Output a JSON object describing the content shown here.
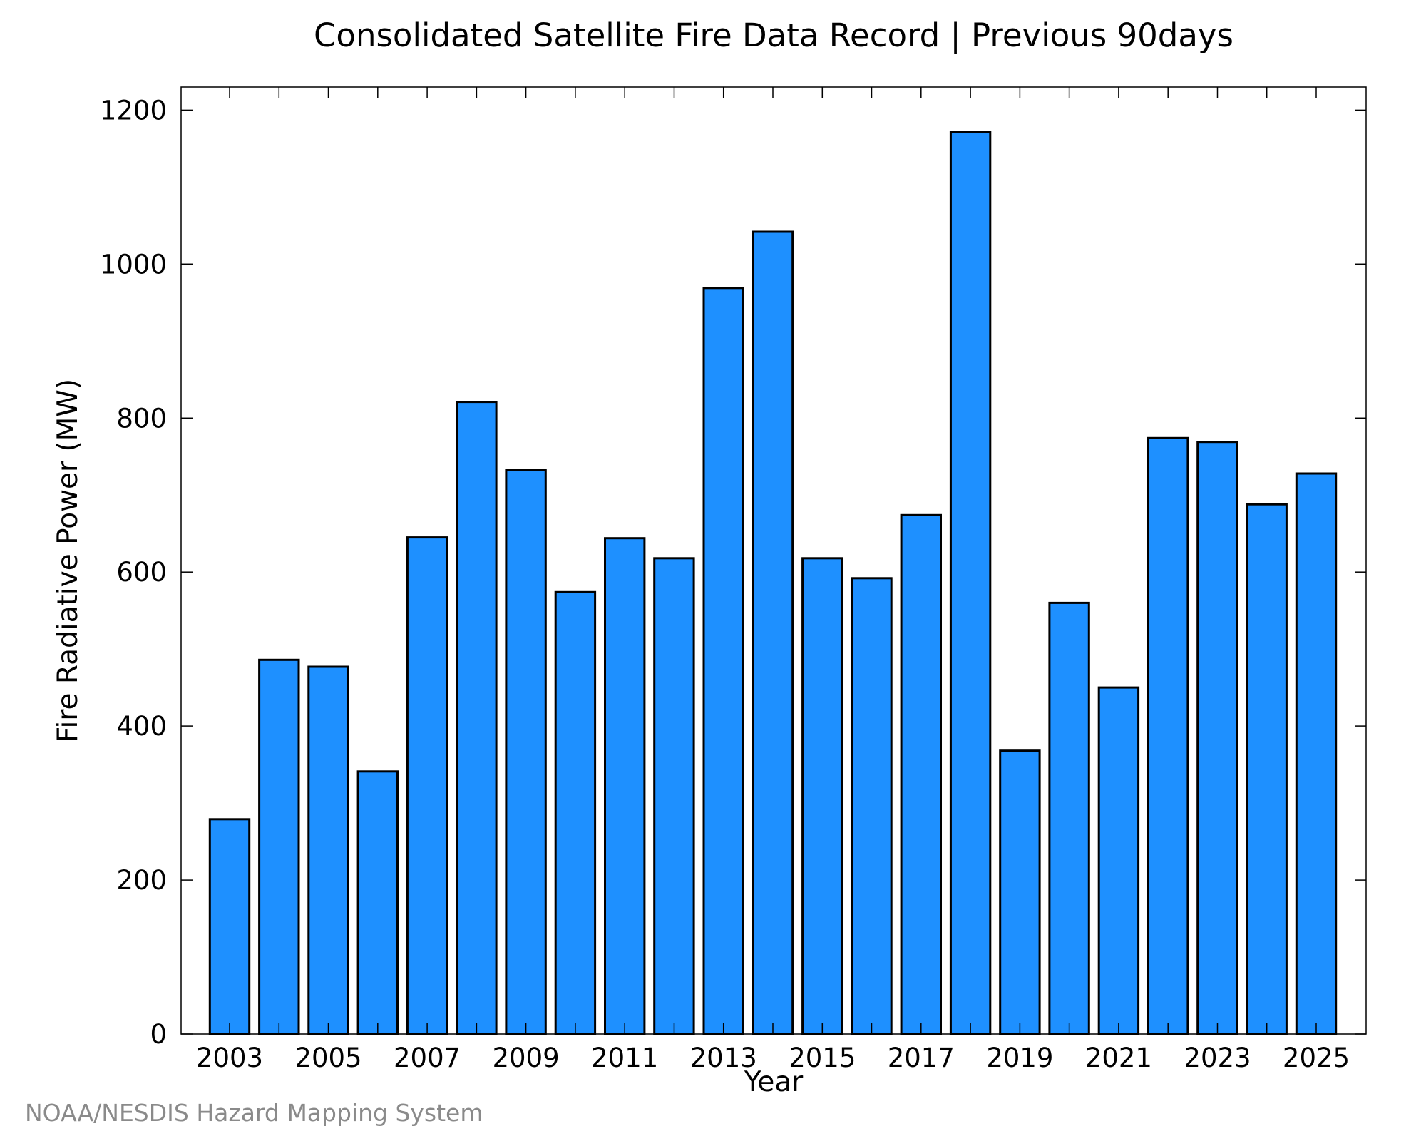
{
  "credit": "NOAA/NESDIS Hazard Mapping System",
  "chart_data": {
    "type": "bar",
    "title": "Consolidated Satellite Fire Data Record | Previous 90days",
    "xlabel": "Year",
    "ylabel": "Fire Radiative Power (MW)",
    "ylim": [
      0,
      1230
    ],
    "yticks": [
      0,
      200,
      400,
      600,
      800,
      1000,
      1200
    ],
    "xticks": [
      "2003",
      "2005",
      "2007",
      "2009",
      "2011",
      "2013",
      "2015",
      "2017",
      "2019",
      "2021",
      "2023",
      "2025"
    ],
    "categories": [
      "2003",
      "2004",
      "2005",
      "2006",
      "2007",
      "2008",
      "2009",
      "2010",
      "2011",
      "2012",
      "2013",
      "2014",
      "2015",
      "2016",
      "2017",
      "2018",
      "2019",
      "2020",
      "2021",
      "2022",
      "2023",
      "2024",
      "2025"
    ],
    "values": [
      279,
      486,
      477,
      341,
      645,
      821,
      733,
      574,
      644,
      618,
      969,
      1042,
      618,
      592,
      674,
      1172,
      368,
      560,
      450,
      774,
      769,
      688,
      728
    ],
    "bar_color": "#1e90ff",
    "edge_color": "#000000",
    "grid": false
  }
}
